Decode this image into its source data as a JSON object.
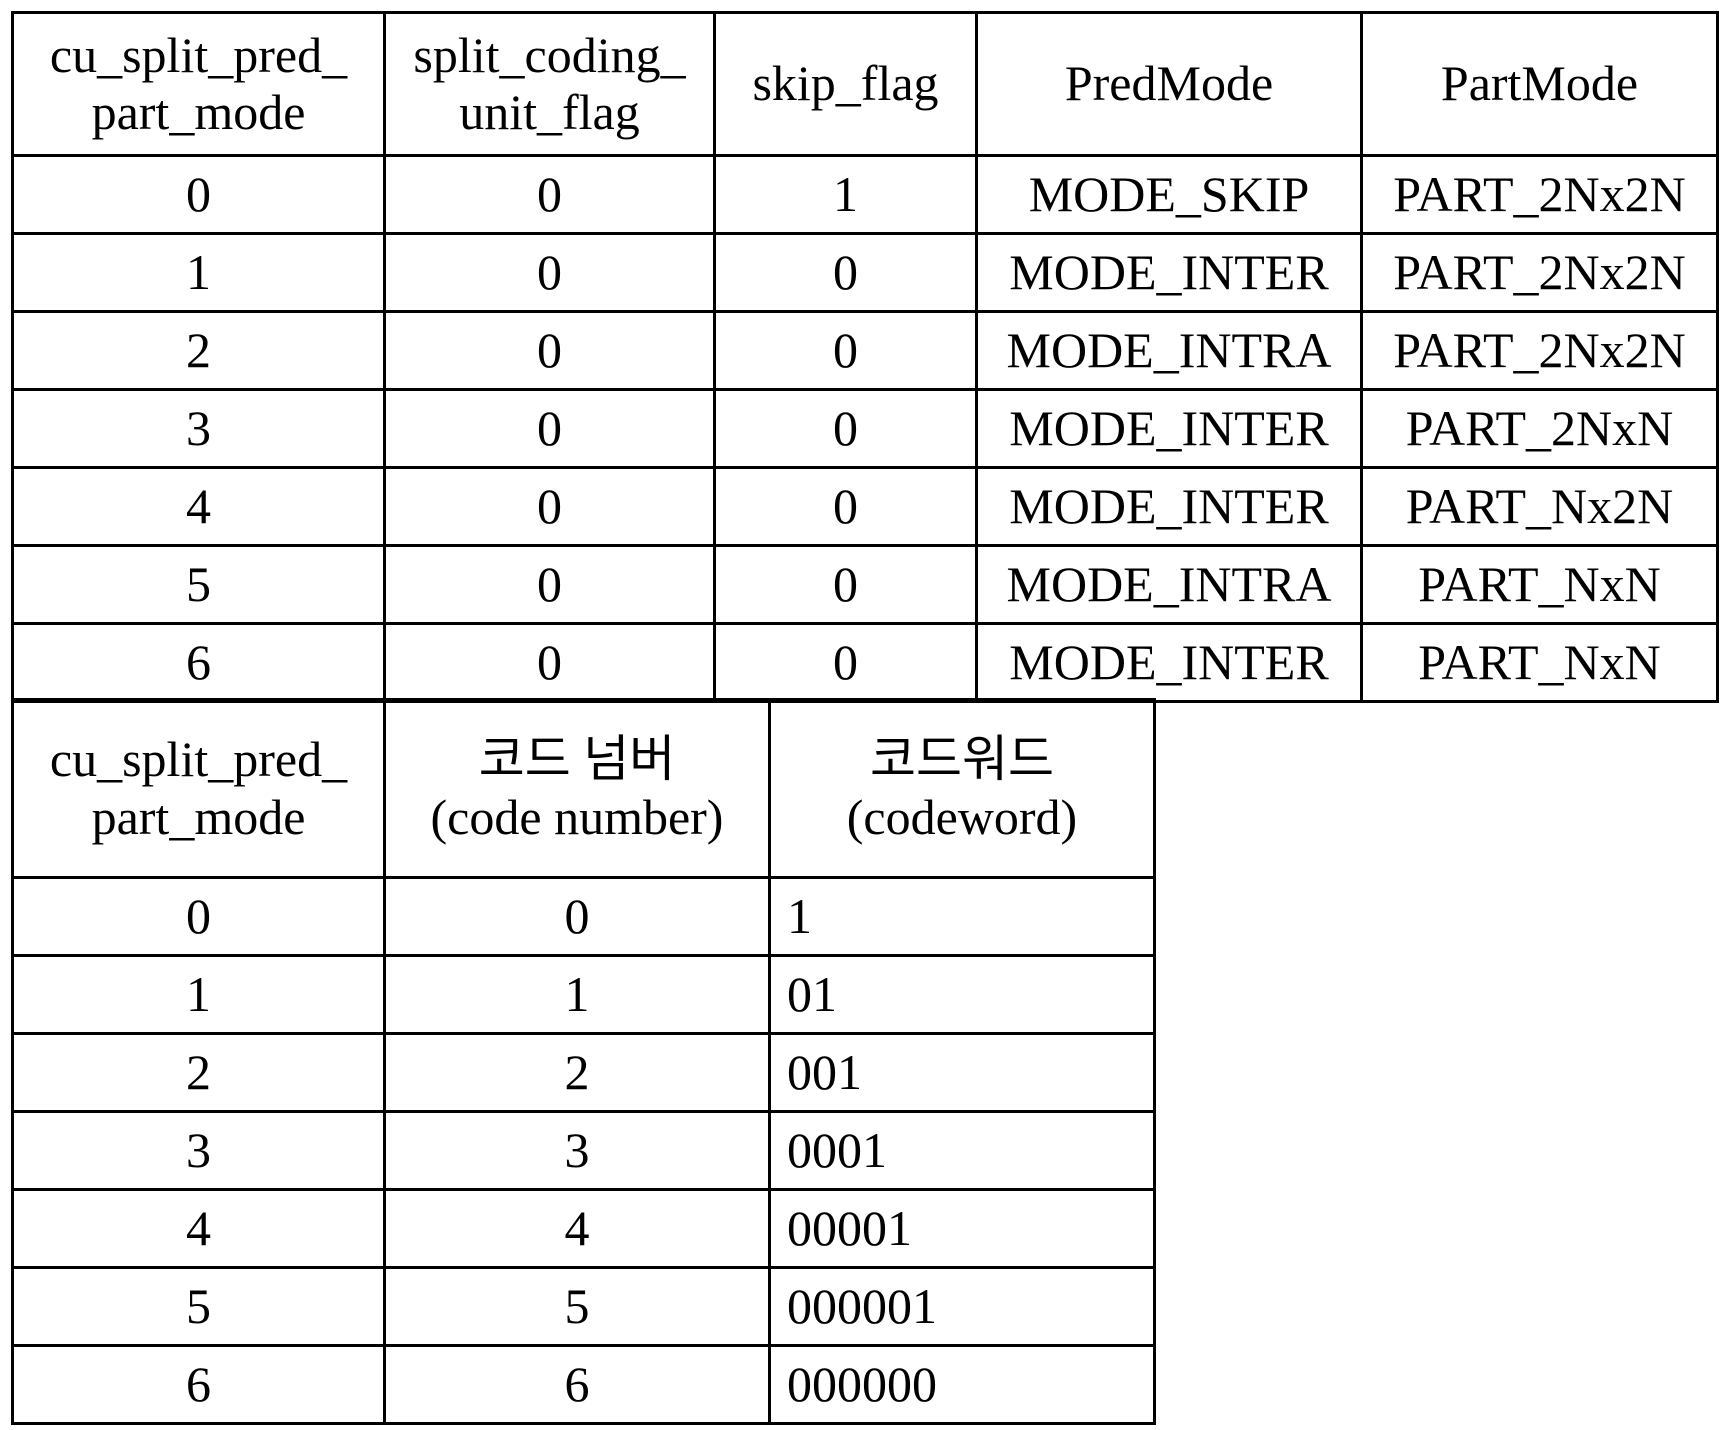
{
  "table1": {
    "headers": [
      [
        "cu_split_pred_",
        "part_mode"
      ],
      [
        "split_coding_",
        "unit_flag"
      ],
      [
        "skip_flag"
      ],
      [
        "PredMode"
      ],
      [
        "PartMode"
      ]
    ],
    "rows": [
      [
        "0",
        "0",
        "1",
        "MODE_SKIP",
        "PART_2Nx2N"
      ],
      [
        "1",
        "0",
        "0",
        "MODE_INTER",
        "PART_2Nx2N"
      ],
      [
        "2",
        "0",
        "0",
        "MODE_INTRA",
        "PART_2Nx2N"
      ],
      [
        "3",
        "0",
        "0",
        "MODE_INTER",
        "PART_2NxN"
      ],
      [
        "4",
        "0",
        "0",
        "MODE_INTER",
        "PART_Nx2N"
      ],
      [
        "5",
        "0",
        "0",
        "MODE_INTRA",
        "PART_NxN"
      ],
      [
        "6",
        "0",
        "0",
        "MODE_INTER",
        "PART_NxN"
      ]
    ]
  },
  "table2": {
    "headers": [
      [
        "cu_split_pred_",
        "part_mode"
      ],
      [
        "코드 넘버",
        "(code number)"
      ],
      [
        "코드워드",
        "(codeword)"
      ]
    ],
    "rows": [
      [
        "0",
        "0",
        "1"
      ],
      [
        "1",
        "1",
        "01"
      ],
      [
        "2",
        "2",
        "001"
      ],
      [
        "3",
        "3",
        "0001"
      ],
      [
        "4",
        "4",
        "00001"
      ],
      [
        "5",
        "5",
        "000001"
      ],
      [
        "6",
        "6",
        "000000"
      ]
    ]
  }
}
